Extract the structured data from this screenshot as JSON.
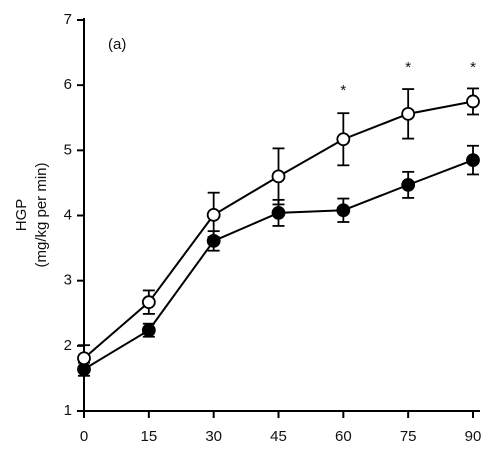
{
  "chart_data": {
    "type": "line",
    "panel_label": "(a)",
    "ylabel": [
      "HGP",
      "(mg/kg per min)"
    ],
    "x": [
      0,
      15,
      30,
      45,
      60,
      75,
      90
    ],
    "xlim": [
      0,
      90
    ],
    "xticks": [
      0,
      15,
      30,
      45,
      60,
      75,
      90
    ],
    "ylim": [
      1,
      7
    ],
    "yticks": [
      1,
      2,
      3,
      4,
      5,
      6,
      7
    ],
    "series": [
      {
        "color": "#000000",
        "marker_fill": "#000000",
        "values": [
          1.64,
          2.24,
          3.61,
          4.04,
          4.08,
          4.47,
          4.85
        ],
        "errors": [
          0.1,
          0.1,
          0.15,
          0.2,
          0.18,
          0.2,
          0.22
        ]
      },
      {
        "color": "#000000",
        "marker_fill": "#ffffff",
        "values": [
          1.81,
          2.67,
          4.01,
          4.6,
          5.17,
          5.56,
          5.75
        ],
        "errors": [
          0.2,
          0.18,
          0.34,
          0.43,
          0.4,
          0.38,
          0.2
        ]
      }
    ],
    "annotations": [
      {
        "x": 60,
        "text": "*"
      },
      {
        "x": 75,
        "text": "*"
      },
      {
        "x": 90,
        "text": "*"
      }
    ]
  }
}
